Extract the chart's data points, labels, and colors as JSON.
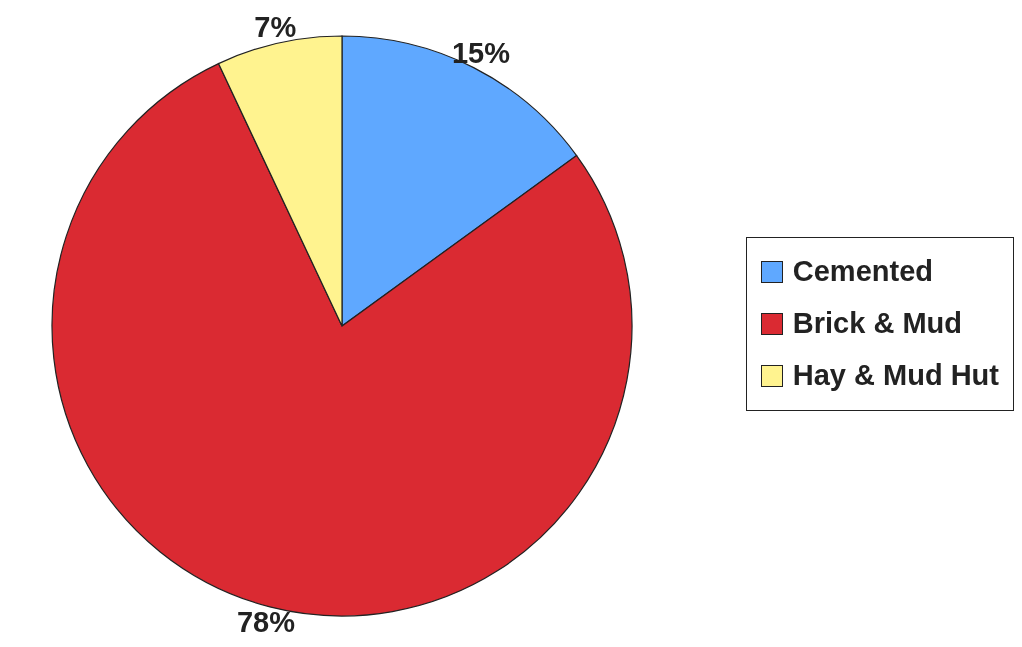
{
  "chart_data": {
    "type": "pie",
    "categories": [
      "Cemented",
      "Brick & Mud",
      "Hay & Mud Hut"
    ],
    "values": [
      15,
      78,
      7
    ],
    "colors": [
      "#5fa8ff",
      "#da2a32",
      "#fff38f"
    ],
    "value_labels": [
      "15%",
      "78%",
      "7%"
    ],
    "legend": "right"
  }
}
